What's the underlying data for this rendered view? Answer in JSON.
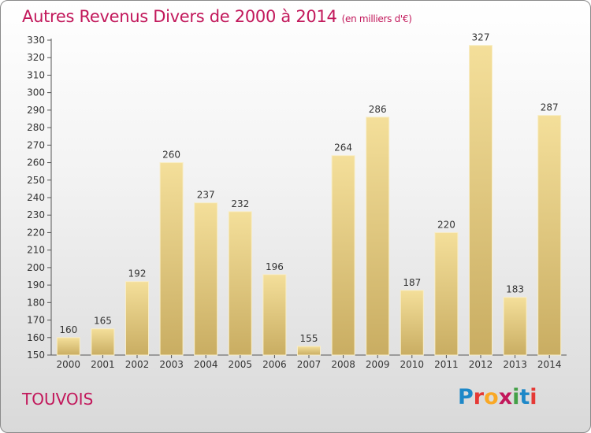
{
  "header": {
    "title": "Autres Revenus Divers de 2000 à 2014",
    "unit": "(en milliers d'€)"
  },
  "footer": {
    "commune": "TOUVOIS",
    "logo_letters": [
      "P",
      "r",
      "o",
      "x",
      "i",
      "t",
      "i"
    ],
    "logo_colors": [
      "#1e88c8",
      "#e53935",
      "#f9a825",
      "#c2185b",
      "#43a047",
      "#1e88c8",
      "#e53935"
    ]
  },
  "chart_data": {
    "type": "bar",
    "title": "Autres Revenus Divers de 2000 à 2014",
    "subtitle": "(en milliers d'€)",
    "categories": [
      "2000",
      "2001",
      "2002",
      "2003",
      "2004",
      "2005",
      "2006",
      "2007",
      "2008",
      "2009",
      "2010",
      "2011",
      "2012",
      "2013",
      "2014"
    ],
    "values": [
      160,
      165,
      192,
      260,
      237,
      232,
      196,
      155,
      264,
      286,
      187,
      220,
      327,
      183,
      287
    ],
    "ylim": [
      150,
      330
    ],
    "yticks": [
      150,
      160,
      170,
      180,
      190,
      200,
      210,
      220,
      230,
      240,
      250,
      260,
      270,
      280,
      290,
      300,
      310,
      320,
      330
    ],
    "grid": false,
    "bar_color_top": "#f4df9a",
    "bar_color_bottom": "#c9ad62"
  }
}
